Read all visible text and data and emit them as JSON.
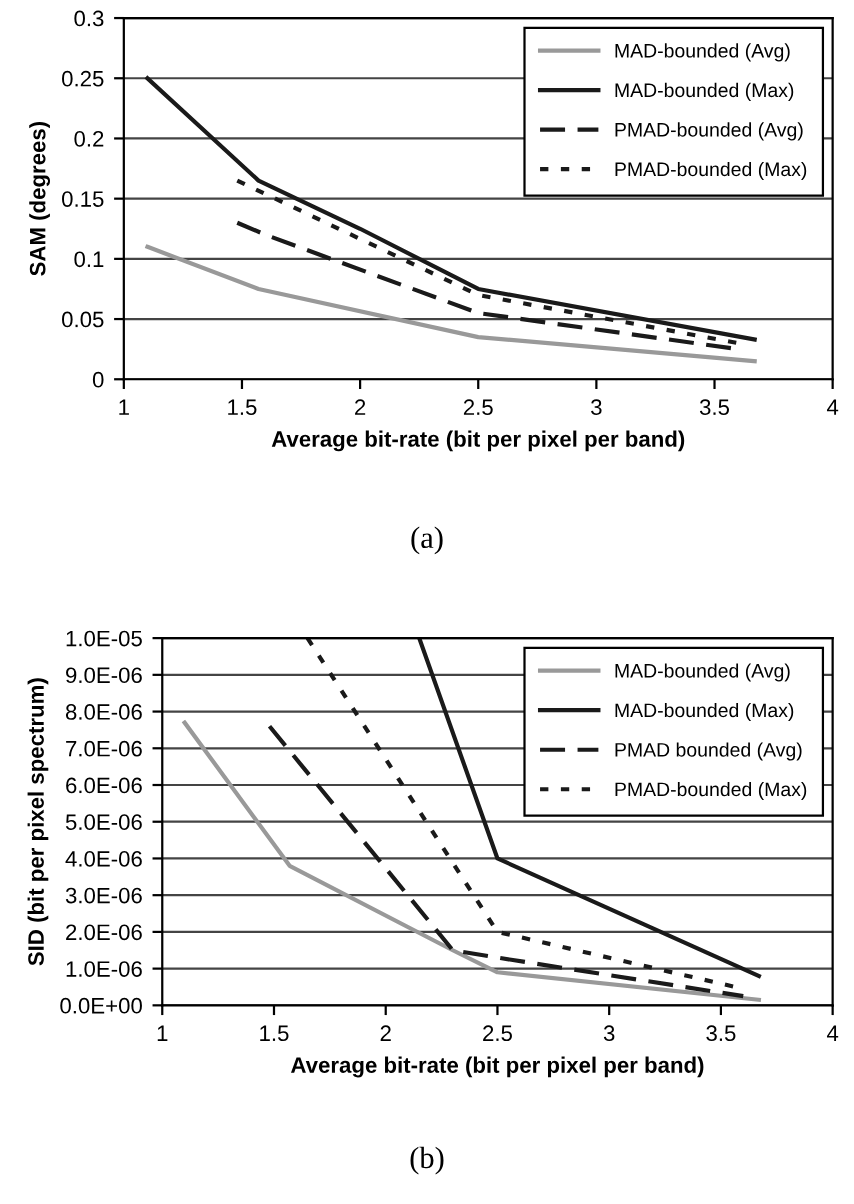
{
  "chart_data": [
    {
      "type": "line",
      "xlabel": "Average bit-rate (bit per pixel per band)",
      "ylabel": "SAM (degrees)",
      "xlim": [
        1,
        4
      ],
      "xticks": [
        1,
        1.5,
        2,
        2.5,
        3,
        3.5,
        4
      ],
      "ylim": [
        0,
        0.3
      ],
      "yticks": [
        0,
        0.05,
        0.1,
        0.15,
        0.2,
        0.25,
        0.3
      ],
      "grid": "y",
      "legend": "top right",
      "annotations": [
        "(a)"
      ],
      "series": [
        {
          "name": "MAD-bounded (Avg)",
          "color": "#999999",
          "line_style": "solid",
          "x": [
            1.1,
            1.57,
            2.5,
            3.67
          ],
          "values": [
            0.11,
            0.075,
            0.035,
            0.015
          ]
        },
        {
          "name": "MAD-bounded (Max)",
          "color": "#1a1a1a",
          "line_style": "solid",
          "x": [
            1.1,
            1.57,
            2.0,
            2.5,
            3.67
          ],
          "values": [
            0.25,
            0.165,
            0.125,
            0.075,
            0.033
          ]
        },
        {
          "name": "PMAD-bounded (Avg)",
          "color": "#1a1a1a",
          "line_style": "dashed",
          "x": [
            1.48,
            1.6,
            2.5,
            3.6
          ],
          "values": [
            0.13,
            0.12,
            0.055,
            0.025
          ]
        },
        {
          "name": "PMAD-bounded (Max)",
          "color": "#1a1a1a",
          "line_style": "dotted",
          "x": [
            1.48,
            2.5,
            3.6
          ],
          "values": [
            0.165,
            0.07,
            0.03
          ]
        }
      ]
    },
    {
      "type": "line",
      "xlabel": "Average bit-rate (bit per pixel per band)",
      "ylabel": "SID (bit per pixel spectrum)",
      "xlim": [
        1,
        4
      ],
      "xticks": [
        1,
        1.5,
        2,
        2.5,
        3,
        3.5,
        4
      ],
      "ylim": [
        0,
        1e-05
      ],
      "yticks": [
        {
          "value": 0,
          "label": "0.0E+00"
        },
        {
          "value": 1e-06,
          "label": "1.0E-06"
        },
        {
          "value": 2e-06,
          "label": "2.0E-06"
        },
        {
          "value": 3e-06,
          "label": "3.0E-06"
        },
        {
          "value": 4e-06,
          "label": "4.0E-06"
        },
        {
          "value": 5e-06,
          "label": "5.0E-06"
        },
        {
          "value": 6e-06,
          "label": "6.0E-06"
        },
        {
          "value": 7e-06,
          "label": "7.0E-06"
        },
        {
          "value": 8e-06,
          "label": "8.0E-06"
        },
        {
          "value": 9e-06,
          "label": "9.0E-06"
        },
        {
          "value": 1e-05,
          "label": "1.0E-05"
        }
      ],
      "grid": "y",
      "legend": "top right",
      "annotations": [
        "(b)"
      ],
      "series": [
        {
          "name": "MAD-bounded (Avg)",
          "color": "#999999",
          "line_style": "solid",
          "x": [
            1.1,
            1.57,
            2.3,
            2.5,
            3.67
          ],
          "values": [
            7.7e-06,
            3.8e-06,
            1.5e-06,
            9e-07,
            1.5e-07
          ]
        },
        {
          "name": "MAD-bounded (Max)",
          "color": "#1a1a1a",
          "line_style": "solid",
          "x": [
            2.15,
            2.5,
            3.67
          ],
          "values": [
            1e-05,
            4e-06,
            8e-07
          ]
        },
        {
          "name": "PMAD bounded (Avg)",
          "color": "#1a1a1a",
          "line_style": "dashed",
          "x": [
            1.48,
            2.3,
            2.5,
            3.6
          ],
          "values": [
            7.6e-06,
            1.5e-06,
            1.3e-06,
            2.5e-07
          ]
        },
        {
          "name": "PMAD-bounded (Max)",
          "color": "#1a1a1a",
          "line_style": "dotted",
          "x": [
            1.65,
            2.5,
            3.6
          ],
          "values": [
            1e-05,
            2e-06,
            4.5e-07
          ]
        }
      ]
    }
  ]
}
